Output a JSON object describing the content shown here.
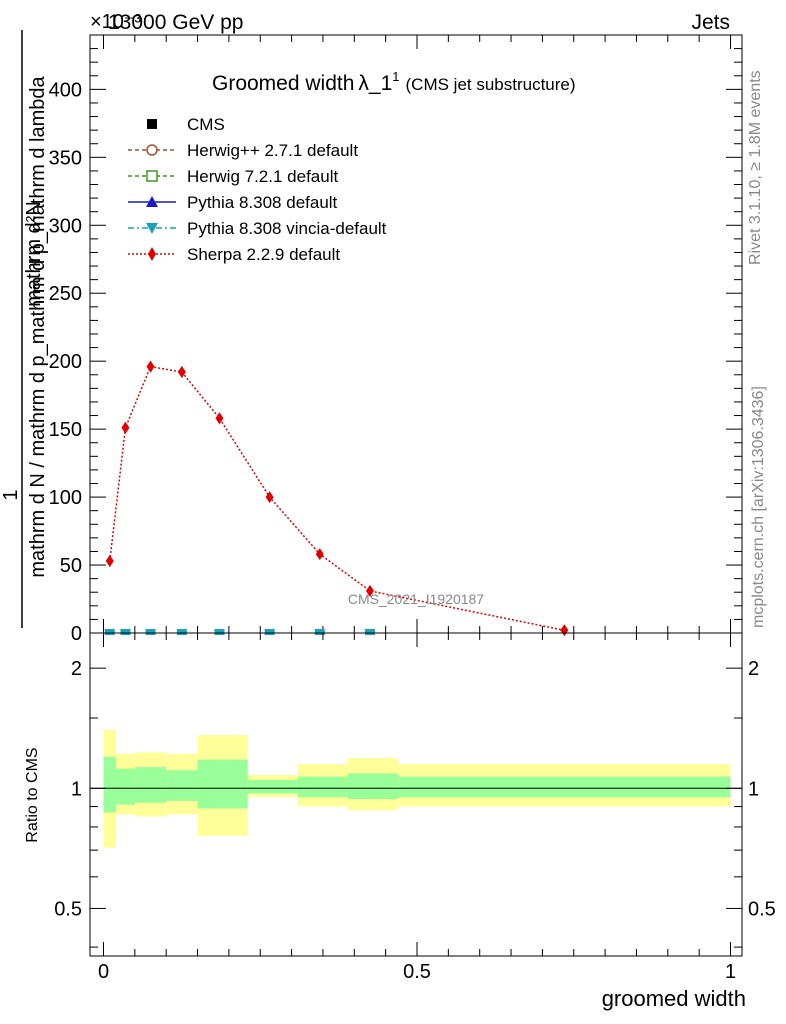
{
  "header": {
    "energy_label": "13000 GeV pp",
    "exponent_label": "×10⁻³",
    "process_label": "Jets"
  },
  "side_labels": {
    "rivet": "Rivet 3.1.10, ≥ 1.8M events",
    "mcplots": "mcplots.cern.ch [arXiv:1306.3436]"
  },
  "chart_data": [
    {
      "type": "line",
      "title": "Groomed width",
      "title_symbol": "λ_1",
      "title_superscript": "1",
      "subtitle": "(CMS jet substructure)",
      "ylabel_numerator": "1",
      "ylabel_denominator": "mathrm d N / mathrm d p_mathrm d p_mathrm d lambda",
      "ylabel_top": "mathrm d²N",
      "xlim": [
        0,
        1
      ],
      "ylim": [
        0,
        440
      ],
      "y_scale_factor": "1e-3",
      "y_ticks": [
        0,
        50,
        100,
        150,
        200,
        250,
        300,
        350,
        400
      ],
      "watermark": "CMS_2021_I1920187",
      "legend_position": "top-left",
      "legend": [
        {
          "label": "CMS",
          "marker": "square-filled",
          "color": "#000000",
          "line": "none"
        },
        {
          "label": "Herwig++ 2.7.1 default",
          "marker": "circle-open",
          "color": "#a0522d",
          "line": "dashed"
        },
        {
          "label": "Herwig 7.2.1 default",
          "marker": "square-open",
          "color": "#3a9a1e",
          "line": "dashed"
        },
        {
          "label": "Pythia 8.308 default",
          "marker": "triangle-up",
          "color": "#1a1acc",
          "line": "solid"
        },
        {
          "label": "Pythia 8.308 vincia-default",
          "marker": "triangle-down",
          "color": "#1aa3b8",
          "line": "dashdot"
        },
        {
          "label": "Sherpa 2.2.9 default",
          "marker": "diamond",
          "color": "#e00000",
          "line": "dotted"
        }
      ],
      "series": [
        {
          "name": "Sherpa 2.2.9 default",
          "color": "#e00000",
          "x": [
            0.01,
            0.035,
            0.075,
            0.125,
            0.185,
            0.265,
            0.345,
            0.425,
            0.735
          ],
          "y": [
            53,
            151,
            196,
            192,
            158,
            100,
            58,
            31,
            2
          ],
          "yerr": [
            4,
            4,
            4,
            4,
            3,
            3,
            2,
            2,
            1
          ]
        }
      ],
      "near_zero_markers": {
        "color": "#1aa3b8",
        "x": [
          0.01,
          0.035,
          0.075,
          0.125,
          0.185,
          0.265,
          0.345,
          0.425
        ],
        "y": [
          0,
          0,
          0,
          0,
          0,
          0,
          0,
          0
        ]
      }
    },
    {
      "type": "area",
      "ylabel": "Ratio to CMS",
      "xlabel": "groomed width",
      "xlim": [
        0,
        1
      ],
      "ylim": [
        0.38,
        2.45
      ],
      "y_scale": "log",
      "y_ticks": [
        0.5,
        1,
        2
      ],
      "x_ticks": [
        0,
        0.5,
        1
      ],
      "reference_line": 1,
      "bins": [
        {
          "x0": 0.0,
          "x1": 0.02,
          "green_lo": 0.87,
          "green_hi": 1.2,
          "yellow_lo": 0.71,
          "yellow_hi": 1.4
        },
        {
          "x0": 0.02,
          "x1": 0.05,
          "green_lo": 0.91,
          "green_hi": 1.12,
          "yellow_lo": 0.86,
          "yellow_hi": 1.22
        },
        {
          "x0": 0.05,
          "x1": 0.1,
          "green_lo": 0.92,
          "green_hi": 1.13,
          "yellow_lo": 0.85,
          "yellow_hi": 1.23
        },
        {
          "x0": 0.1,
          "x1": 0.15,
          "green_lo": 0.93,
          "green_hi": 1.11,
          "yellow_lo": 0.86,
          "yellow_hi": 1.22
        },
        {
          "x0": 0.15,
          "x1": 0.23,
          "green_lo": 0.89,
          "green_hi": 1.18,
          "yellow_lo": 0.76,
          "yellow_hi": 1.36
        },
        {
          "x0": 0.23,
          "x1": 0.31,
          "green_lo": 0.97,
          "green_hi": 1.05,
          "yellow_lo": 0.95,
          "yellow_hi": 1.08
        },
        {
          "x0": 0.31,
          "x1": 0.39,
          "green_lo": 0.95,
          "green_hi": 1.07,
          "yellow_lo": 0.9,
          "yellow_hi": 1.15
        },
        {
          "x0": 0.39,
          "x1": 0.47,
          "green_lo": 0.94,
          "green_hi": 1.09,
          "yellow_lo": 0.88,
          "yellow_hi": 1.19
        },
        {
          "x0": 0.47,
          "x1": 1.0,
          "green_lo": 0.95,
          "green_hi": 1.07,
          "yellow_lo": 0.9,
          "yellow_hi": 1.15
        }
      ],
      "band_colors": {
        "inner": "#99ff99",
        "outer": "#ffff99"
      }
    }
  ]
}
